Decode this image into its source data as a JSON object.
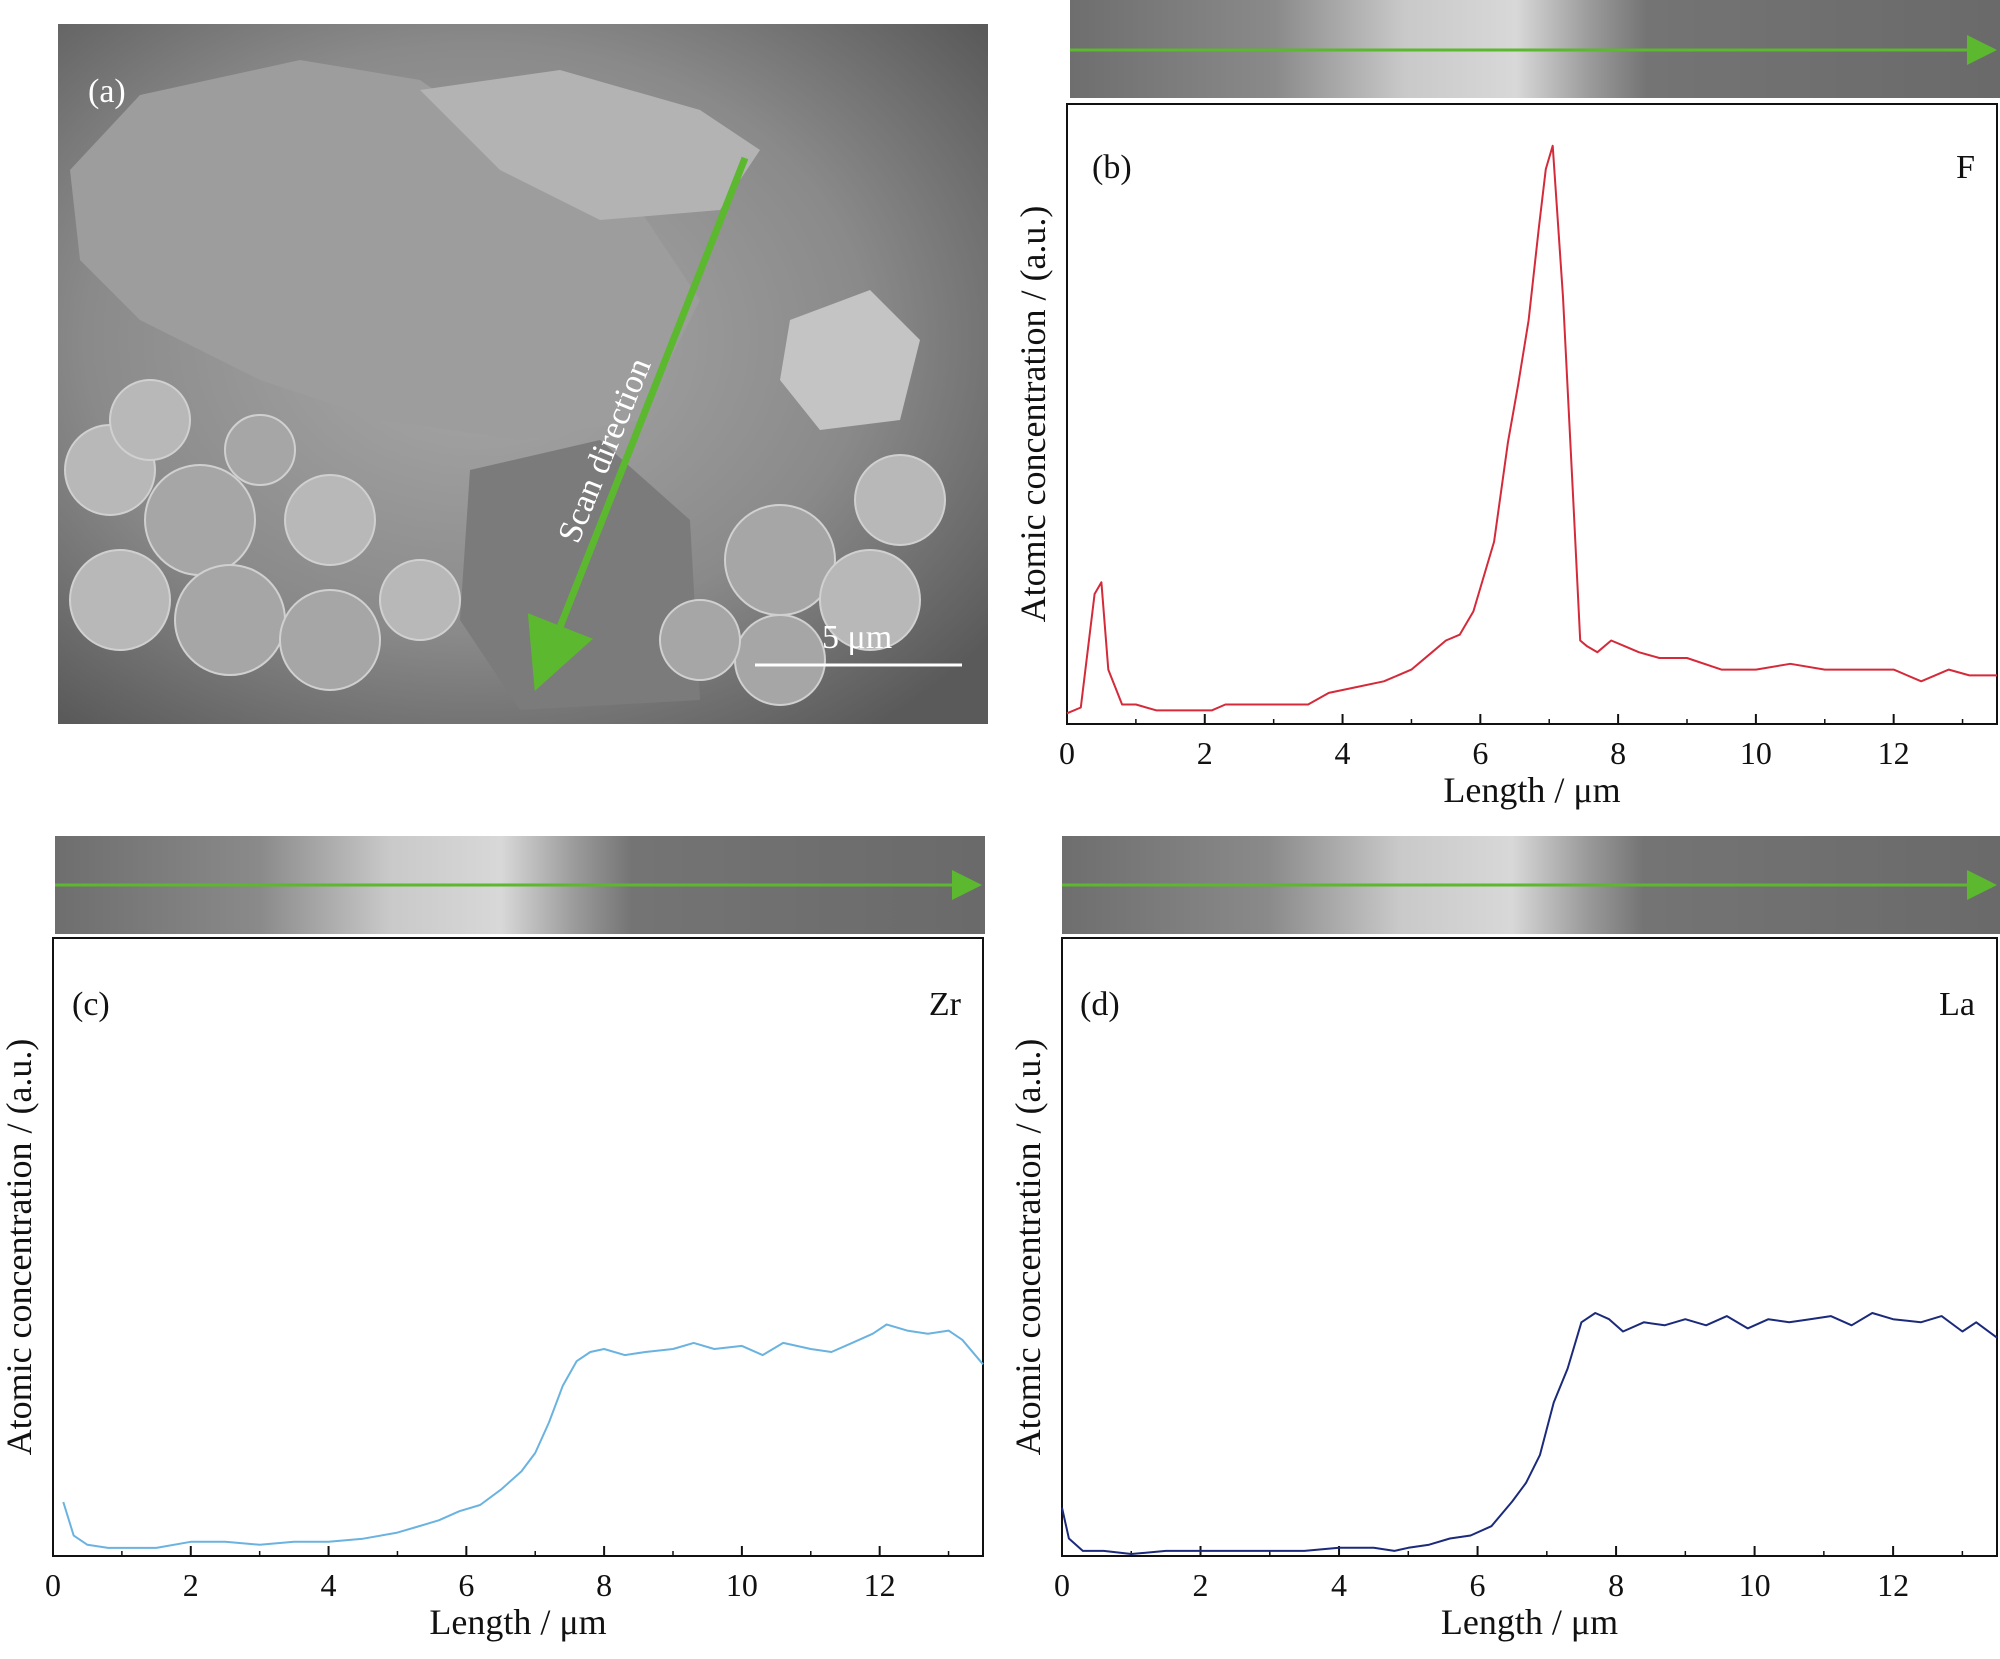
{
  "panel_a": {
    "label": "(a)",
    "arrow_text": "Scan direction",
    "scale_bar": "5 μm"
  },
  "chart_data": [
    {
      "type": "line",
      "panel": "(b)",
      "element": "F",
      "color": "#d42a3a",
      "xlabel": "Length / μm",
      "ylabel": "Atomic concentration / (a.u.)",
      "xlim": [
        0,
        13.5
      ],
      "ylim": [
        0,
        100
      ],
      "xticks": [
        0,
        2,
        4,
        6,
        8,
        10,
        12
      ],
      "x": [
        0.0,
        0.2,
        0.4,
        0.5,
        0.6,
        0.8,
        1.0,
        1.3,
        1.6,
        1.9,
        2.1,
        2.3,
        2.6,
        3.0,
        3.5,
        3.8,
        4.2,
        4.6,
        5.0,
        5.3,
        5.5,
        5.7,
        5.9,
        6.0,
        6.2,
        6.4,
        6.55,
        6.7,
        6.85,
        6.95,
        7.05,
        7.2,
        7.35,
        7.45,
        7.55,
        7.7,
        7.9,
        8.1,
        8.3,
        8.6,
        9.0,
        9.5,
        10.0,
        10.5,
        11.0,
        11.5,
        12.0,
        12.4,
        12.8,
        13.1,
        13.5
      ],
      "values": [
        1.5,
        2.5,
        22,
        24,
        9,
        3,
        3,
        2,
        2,
        2,
        2,
        3,
        3,
        3,
        3,
        5,
        6,
        7,
        9,
        12,
        14,
        15,
        19,
        23,
        31,
        48,
        58,
        69,
        85,
        95,
        99,
        73,
        38,
        14,
        13,
        12,
        14,
        13,
        12,
        11,
        11,
        9,
        9,
        10,
        9,
        9,
        9,
        7,
        9,
        8,
        8
      ]
    },
    {
      "type": "line",
      "panel": "(c)",
      "element": "Zr",
      "color": "#6ab3e0",
      "xlabel": "Length / μm",
      "ylabel": "Atomic concentration / (a.u.)",
      "xlim": [
        0,
        13.5
      ],
      "ylim": [
        0,
        100
      ],
      "xticks": [
        0,
        2,
        4,
        6,
        8,
        10,
        12
      ],
      "x": [
        0.15,
        0.3,
        0.5,
        0.8,
        1.0,
        1.5,
        2.0,
        2.5,
        3.0,
        3.5,
        4.0,
        4.5,
        5.0,
        5.3,
        5.6,
        5.9,
        6.2,
        6.5,
        6.8,
        7.0,
        7.2,
        7.4,
        7.6,
        7.8,
        8.0,
        8.3,
        8.6,
        9.0,
        9.3,
        9.6,
        10.0,
        10.3,
        10.6,
        11.0,
        11.3,
        11.6,
        11.9,
        12.1,
        12.4,
        12.7,
        13.0,
        13.2,
        13.5
      ],
      "values": [
        17,
        6,
        3,
        2,
        2,
        2,
        4,
        4,
        3,
        4,
        4,
        5,
        7,
        9,
        11,
        14,
        16,
        21,
        27,
        33,
        43,
        55,
        63,
        66,
        67,
        65,
        66,
        67,
        69,
        67,
        68,
        65,
        69,
        67,
        66,
        69,
        72,
        75,
        73,
        72,
        73,
        70,
        62
      ]
    },
    {
      "type": "line",
      "panel": "(d)",
      "element": "La",
      "color": "#1b2a7a",
      "xlabel": "Length / μm",
      "ylabel": "Atomic concentration / (a.u.)",
      "xlim": [
        0,
        13.5
      ],
      "ylim": [
        0,
        100
      ],
      "xticks": [
        0,
        2,
        4,
        6,
        8,
        10,
        12
      ],
      "x": [
        0.0,
        0.1,
        0.3,
        0.6,
        1.0,
        1.5,
        2.0,
        2.5,
        3.0,
        3.5,
        4.0,
        4.5,
        4.8,
        5.0,
        5.3,
        5.6,
        5.9,
        6.2,
        6.5,
        6.7,
        6.9,
        7.1,
        7.3,
        7.5,
        7.7,
        7.9,
        8.1,
        8.4,
        8.7,
        9.0,
        9.3,
        9.6,
        9.9,
        10.2,
        10.5,
        10.8,
        11.1,
        11.4,
        11.7,
        12.0,
        12.4,
        12.7,
        13.0,
        13.2,
        13.5
      ],
      "values": [
        15,
        5,
        1,
        1,
        0,
        1,
        1,
        1,
        1,
        1,
        2,
        2,
        1,
        2,
        3,
        5,
        6,
        9,
        17,
        23,
        32,
        49,
        60,
        75,
        78,
        76,
        72,
        75,
        74,
        76,
        74,
        77,
        73,
        76,
        75,
        76,
        77,
        74,
        78,
        76,
        75,
        77,
        72,
        75,
        70
      ]
    }
  ]
}
